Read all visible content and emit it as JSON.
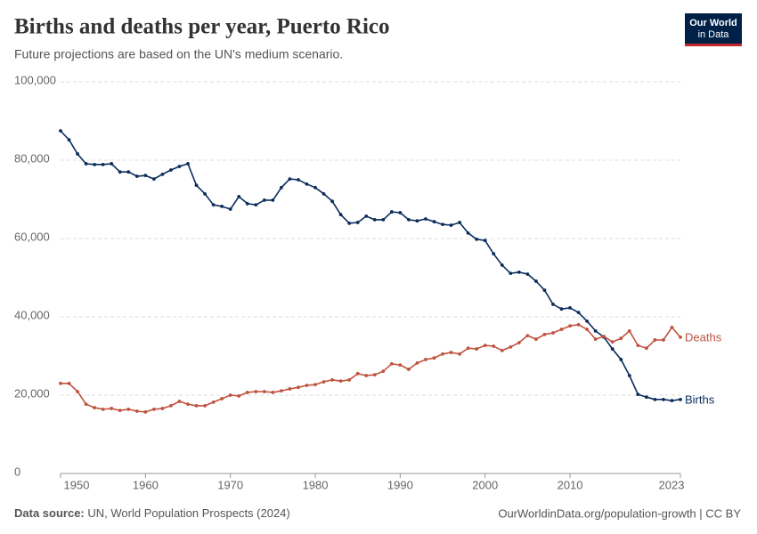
{
  "chart_data": {
    "type": "line",
    "title": "Births and deaths per year, Puerto Rico",
    "subtitle": "Future projections are based on the UN's medium scenario.",
    "source_label": "Data source:",
    "source": "UN, World Population Prospects (2024)",
    "footer_right": "OurWorldinData.org/population-growth | CC BY",
    "logo": [
      "Our World",
      "in Data"
    ],
    "x": [
      1950,
      1951,
      1952,
      1953,
      1954,
      1955,
      1956,
      1957,
      1958,
      1959,
      1960,
      1961,
      1962,
      1963,
      1964,
      1965,
      1966,
      1967,
      1968,
      1969,
      1970,
      1971,
      1972,
      1973,
      1974,
      1975,
      1976,
      1977,
      1978,
      1979,
      1980,
      1981,
      1982,
      1983,
      1984,
      1985,
      1986,
      1987,
      1988,
      1989,
      1990,
      1991,
      1992,
      1993,
      1994,
      1995,
      1996,
      1997,
      1998,
      1999,
      2000,
      2001,
      2002,
      2003,
      2004,
      2005,
      2006,
      2007,
      2008,
      2009,
      2010,
      2011,
      2012,
      2013,
      2014,
      2015,
      2016,
      2017,
      2018,
      2019,
      2020,
      2021,
      2022,
      2023
    ],
    "series": [
      {
        "name": "Births",
        "color": "#0b2d5b",
        "values": [
          87500,
          85200,
          81600,
          79100,
          78900,
          78900,
          79100,
          77000,
          77000,
          75900,
          76100,
          75200,
          76400,
          77500,
          78400,
          79100,
          73600,
          71400,
          68600,
          68200,
          67500,
          70700,
          68900,
          68600,
          69800,
          69800,
          73000,
          75200,
          75000,
          73900,
          73000,
          71400,
          69500,
          66100,
          63900,
          64100,
          65700,
          64800,
          64800,
          66800,
          66600,
          64800,
          64500,
          65000,
          64300,
          63600,
          63400,
          64100,
          61400,
          59800,
          59500,
          56100,
          53200,
          51100,
          51400,
          50900,
          49100,
          46800,
          43200,
          42000,
          42300,
          41100,
          38900,
          36400,
          34800,
          31800,
          29100,
          25000,
          20200,
          19500,
          18900,
          18900,
          18600,
          18900
        ]
      },
      {
        "name": "Deaths",
        "color": "#c0533f",
        "values": [
          23000,
          23000,
          20900,
          17700,
          16800,
          16400,
          16600,
          16100,
          16400,
          15900,
          15700,
          16400,
          16600,
          17300,
          18400,
          17700,
          17300,
          17300,
          18200,
          19100,
          20000,
          19800,
          20700,
          20900,
          20900,
          20700,
          21100,
          21600,
          22000,
          22500,
          22700,
          23400,
          23900,
          23600,
          23900,
          25500,
          25000,
          25200,
          26100,
          28000,
          27700,
          26600,
          28200,
          29100,
          29500,
          30500,
          30900,
          30500,
          32000,
          31800,
          32700,
          32500,
          31400,
          32300,
          33400,
          35200,
          34300,
          35500,
          35900,
          36800,
          37700,
          38000,
          36800,
          34300,
          35000,
          33600,
          34500,
          36400,
          32700,
          32000,
          34100,
          34100,
          37300,
          34800
        ]
      }
    ],
    "xlim": [
      1950,
      2023
    ],
    "xticks": [
      1950,
      1960,
      1970,
      1980,
      1990,
      2000,
      2010,
      2023
    ],
    "ylim": [
      0,
      100000
    ],
    "yticks": [
      0,
      {
        "value": 20000,
        "label": "20,000"
      },
      {
        "value": 40000,
        "label": "40,000"
      },
      {
        "value": 60000,
        "label": "60,000"
      },
      {
        "value": 80000,
        "label": "80,000"
      },
      {
        "value": 100000,
        "label": "100,000"
      }
    ],
    "grid": true
  }
}
